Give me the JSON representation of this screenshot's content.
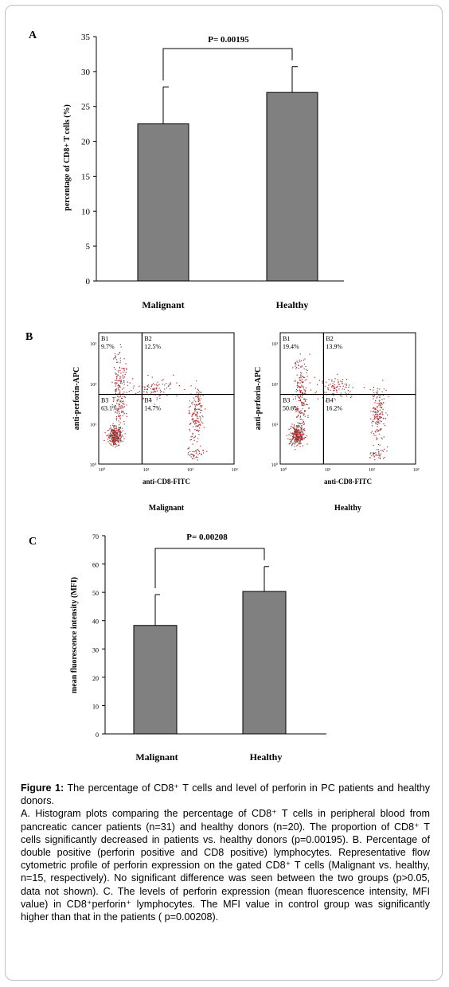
{
  "panel_a": {
    "letter": "A",
    "pvalue": "P= 0.00195",
    "ylabel": "percentage of CD8+ T cells (%)",
    "yticks": [
      "0",
      "5",
      "10",
      "15",
      "20",
      "25",
      "30",
      "35"
    ]
  },
  "panel_b": {
    "letter": "B",
    "ylabel": "anti-perforin-APC",
    "xlabel": "anti-CD8-FITC",
    "tick_labels": [
      "10⁰",
      "10¹",
      "10²",
      "10³"
    ],
    "plots": [
      {
        "title": "Malignant",
        "b1": "B1",
        "b1v": "9.7%",
        "b2": "B2",
        "b2v": "12.5%",
        "b3": "B3",
        "b3v": "63.1%",
        "b4": "B4",
        "b4v": "14.7%"
      },
      {
        "title": "Healthy",
        "b1": "B1",
        "b1v": "19.4%",
        "b2": "B2",
        "b2v": "13.9%",
        "b3": "B3",
        "b3v": "50.6%",
        "b4": "B4",
        "b4v": "16.2%"
      }
    ]
  },
  "panel_c": {
    "letter": "C",
    "pvalue": "P= 0.00208",
    "ylabel": "mean fluorescence intensity (MFI)",
    "yticks": [
      "0",
      "10",
      "20",
      "30",
      "40",
      "50",
      "60",
      "70"
    ]
  },
  "chart_data": [
    {
      "type": "bar",
      "categories": [
        "Malignant",
        "Healthy"
      ],
      "values": [
        22.5,
        27.0
      ],
      "error": [
        5.3,
        3.7
      ],
      "ylabel": "percentage of CD8+ T cells (%)",
      "ylim": [
        0,
        35
      ],
      "annotation": "P= 0.00195"
    },
    {
      "type": "bar",
      "categories": [
        "Malignant",
        "Healthy"
      ],
      "values": [
        38.3,
        50.3
      ],
      "error": [
        10.9,
        8.8
      ],
      "ylabel": "mean fluorescence intensity (MFI)",
      "ylim": [
        0,
        70
      ],
      "annotation": "P= 0.00208"
    }
  ],
  "caption": {
    "label": "Figure 1:",
    "title_text": " The percentage of CD8⁺ T cells and level of perforin in PC patients and healthy donors.",
    "body": "A. Histogram plots comparing the percentage of CD8⁺ T cells in peripheral blood from pancreatic cancer patients (n=31) and healthy donors (n=20). The proportion of CD8⁺ T cells significantly decreased in patients vs. healthy donors (p=0.00195). B. Percentage of double positive (perforin positive and CD8 positive) lymphocytes. Representative flow cytometric profile of perforin expression on the gated CD8⁺ T cells (Malignant vs. healthy, n=15, respectively). No significant difference was seen between the two groups (p>0.05, data not shown). C. The levels of perforin expression (mean fluorescence intensity, MFI value) in CD8⁺perforin⁺ lymphocytes. The MFI value in control group was significantly higher than that in the patients ( p=0.00208)."
  }
}
